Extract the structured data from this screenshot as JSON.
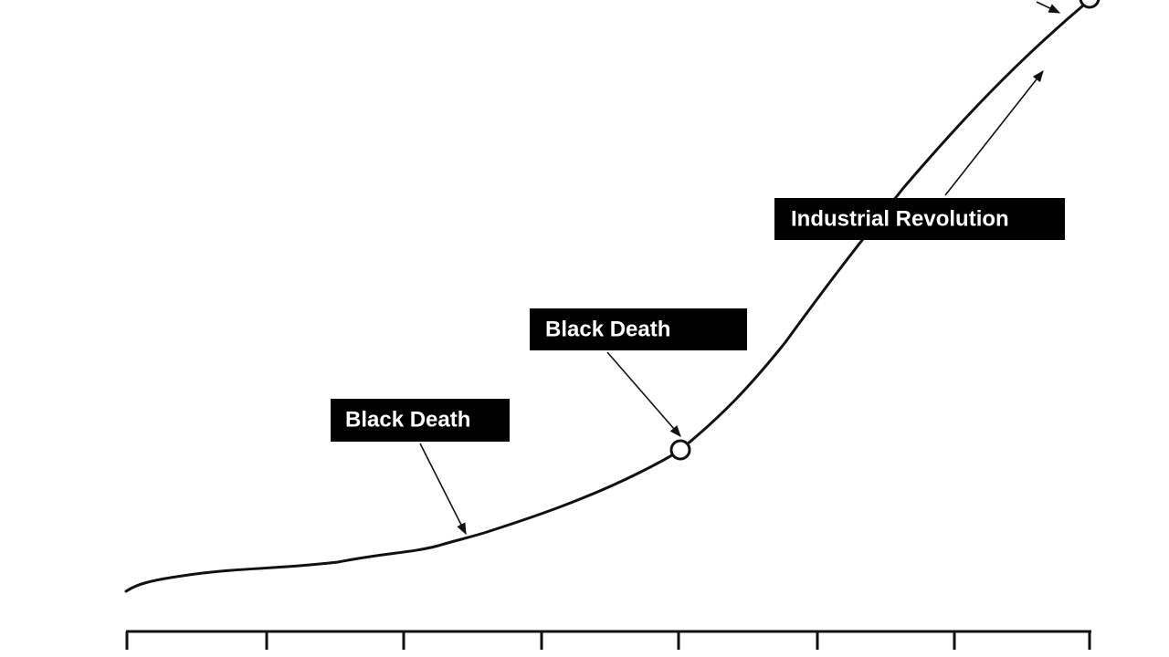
{
  "annotations": [
    {
      "label": "Black Death"
    },
    {
      "label": "Black Death"
    },
    {
      "label": "Industrial Revolution"
    }
  ]
}
